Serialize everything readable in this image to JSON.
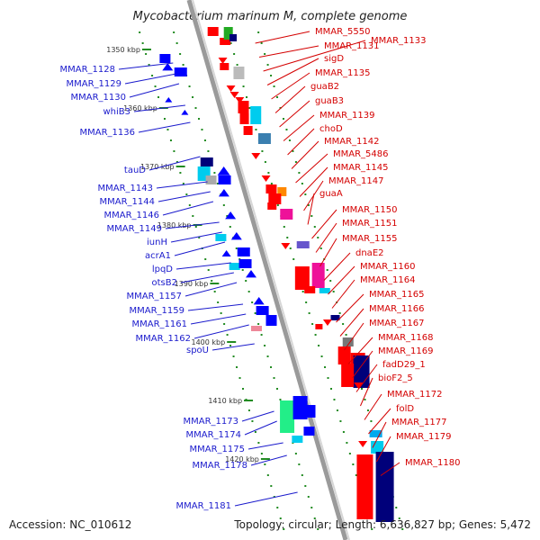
{
  "title": "Mycobacterium marinum M, complete genome",
  "footer": {
    "accession": "Accession: NC_010612",
    "topology": "Topology: circular; Length: 6,636,827 bp; Genes: 5,472"
  },
  "colors": {
    "forward_strand": "#ff0000",
    "reverse_strand": "#0000ff",
    "right_labels": "#d40000",
    "left_labels": "#1a1acc",
    "tick_marks": "#228b22"
  },
  "scale_ticks": [
    "1350 kbp",
    "1360 kbp",
    "1370 kbp",
    "1380 kbp",
    "1390 kbp",
    "1400 kbp",
    "1410 kbp",
    "1420 kbp"
  ],
  "right_labels": [
    "MMAR_5550",
    "MMAR_1131",
    "MMAR_1133",
    "sigD",
    "MMAR_1135",
    "guaB2",
    "guaB3",
    "MMAR_1139",
    "choD",
    "MMAR_1142",
    "MMAR_5486",
    "MMAR_1145",
    "MMAR_1147",
    "guaA",
    "MMAR_1150",
    "MMAR_1151",
    "MMAR_1155",
    "dnaE2",
    "MMAR_1160",
    "MMAR_1164",
    "MMAR_1165",
    "MMAR_1166",
    "MMAR_1167",
    "MMAR_1168",
    "MMAR_1169",
    "fadD29_1",
    "bioF2_5",
    "MMAR_1172",
    "folD",
    "MMAR_1177",
    "MMAR_1179",
    "MMAR_1180"
  ],
  "left_labels": [
    "MMAR_1128",
    "MMAR_1129",
    "MMAR_1130",
    "whiB3",
    "MMAR_1136",
    "tauD",
    "MMAR_1143",
    "MMAR_1144",
    "MMAR_1146",
    "MMAR_1149",
    "iunH",
    "acrA1",
    "lpqD",
    "otsB2",
    "MMAR_1157",
    "MMAR_1159",
    "MMAR_1161",
    "MMAR_1162",
    "spoU",
    "MMAR_1173",
    "MMAR_1174",
    "MMAR_1175",
    "MMAR_1178",
    "MMAR_1181"
  ]
}
